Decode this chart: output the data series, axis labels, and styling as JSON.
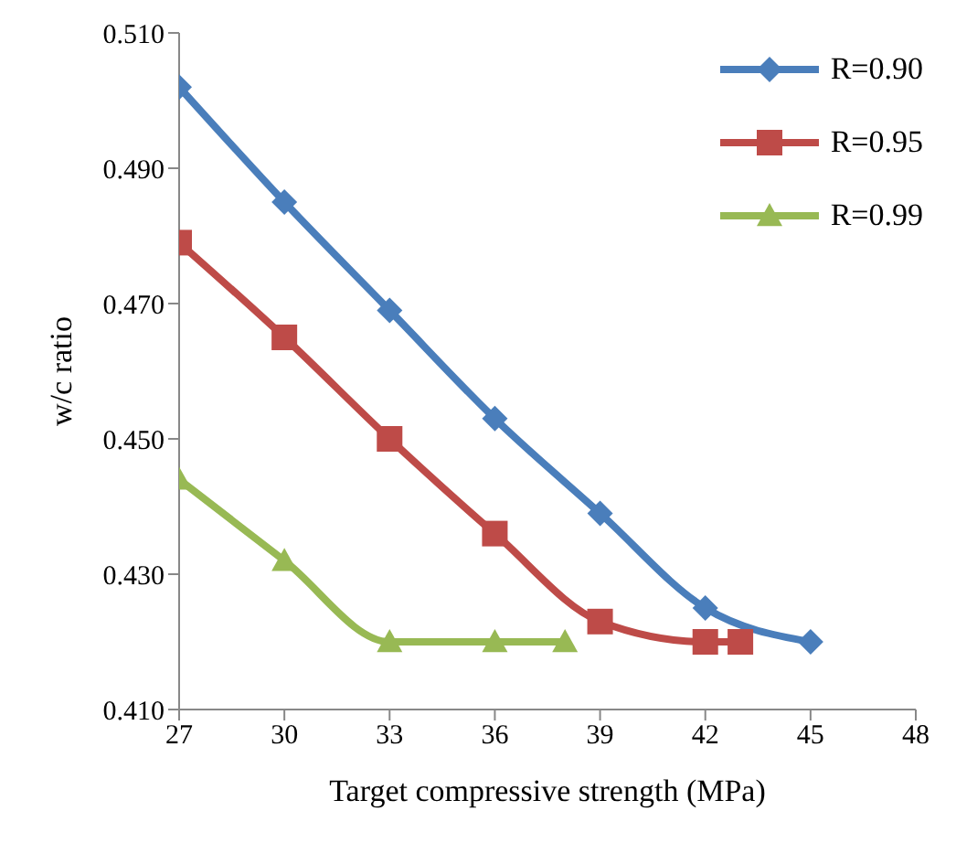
{
  "chart_data": {
    "type": "line",
    "xlabel": "Target  compressive strength (MPa)",
    "ylabel": "w/c ratio",
    "xlim": [
      27,
      48
    ],
    "xticks": [
      27,
      30,
      33,
      36,
      39,
      42,
      45,
      48
    ],
    "ylim": [
      0.41,
      0.51
    ],
    "yticks": [
      {
        "value": 0.41,
        "label": "0.410"
      },
      {
        "value": 0.43,
        "label": "0.430"
      },
      {
        "value": 0.45,
        "label": "0.450"
      },
      {
        "value": 0.47,
        "label": "0.470"
      },
      {
        "value": 0.49,
        "label": "0.490"
      },
      {
        "value": 0.51,
        "label": "0.510"
      }
    ],
    "grid": false,
    "legend": "top right",
    "series": [
      {
        "name": "R=0.90",
        "color": "#4a7ebb",
        "marker": "diamond",
        "x": [
          27,
          30,
          33,
          36,
          39,
          42,
          45
        ],
        "values": [
          0.502,
          0.485,
          0.469,
          0.453,
          0.439,
          0.425,
          0.42
        ]
      },
      {
        "name": "R=0.95",
        "color": "#be4b48",
        "marker": "square",
        "x": [
          27,
          30,
          33,
          36,
          39,
          42,
          43
        ],
        "values": [
          0.479,
          0.465,
          0.45,
          0.436,
          0.423,
          0.42,
          0.42
        ]
      },
      {
        "name": "R=0.99",
        "color": "#98b954",
        "marker": "triangle",
        "x": [
          27,
          30,
          33,
          36,
          38
        ],
        "values": [
          0.444,
          0.432,
          0.42,
          0.42,
          0.42
        ]
      }
    ]
  }
}
